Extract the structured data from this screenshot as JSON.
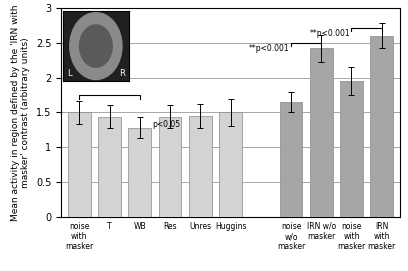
{
  "chart_data": {
    "type": "bar",
    "ylabel": "Mean activity in region defined by the 'IRN with masker' contrast (arbitrary units)",
    "categories": [
      "noise\nwith\nmasker",
      "T",
      "WB",
      "Res",
      "Unres",
      "Huggins",
      null,
      "noise\nw/o\nmasker",
      "IRN w/o\nmasker",
      "noise\nwith\nmasker",
      "IRN\nwith\nmasker"
    ],
    "values": [
      1.5,
      1.44,
      1.28,
      1.44,
      1.45,
      1.5,
      null,
      1.65,
      2.42,
      1.95,
      2.6
    ],
    "errors": [
      0.17,
      0.17,
      0.15,
      0.17,
      0.17,
      0.2,
      null,
      0.15,
      0.2,
      0.2,
      0.18
    ],
    "colors": [
      "#d3d3d3",
      "#d3d3d3",
      "#d3d3d3",
      "#d3d3d3",
      "#d3d3d3",
      "#d3d3d3",
      null,
      "#a6a6a6",
      "#a6a6a6",
      "#a6a6a6",
      "#a6a6a6"
    ],
    "ylim": [
      0,
      3
    ],
    "yticks": [
      0,
      0.5,
      1,
      1.5,
      2,
      2.5,
      3
    ],
    "grid": true,
    "annotations": [
      {
        "text": "p<0.05",
        "x1": 0,
        "x2": 2,
        "y": 1.75,
        "text_y": 1.33
      },
      {
        "text": "**p<0.001",
        "x1": 7,
        "x2": 8,
        "y": 2.5,
        "text_y": 2.5
      },
      {
        "text": "**p<0.001",
        "x1": 9,
        "x2": 10,
        "y": 2.72,
        "text_y": 2.72
      }
    ],
    "inset_labels": [
      "L",
      "R"
    ]
  }
}
